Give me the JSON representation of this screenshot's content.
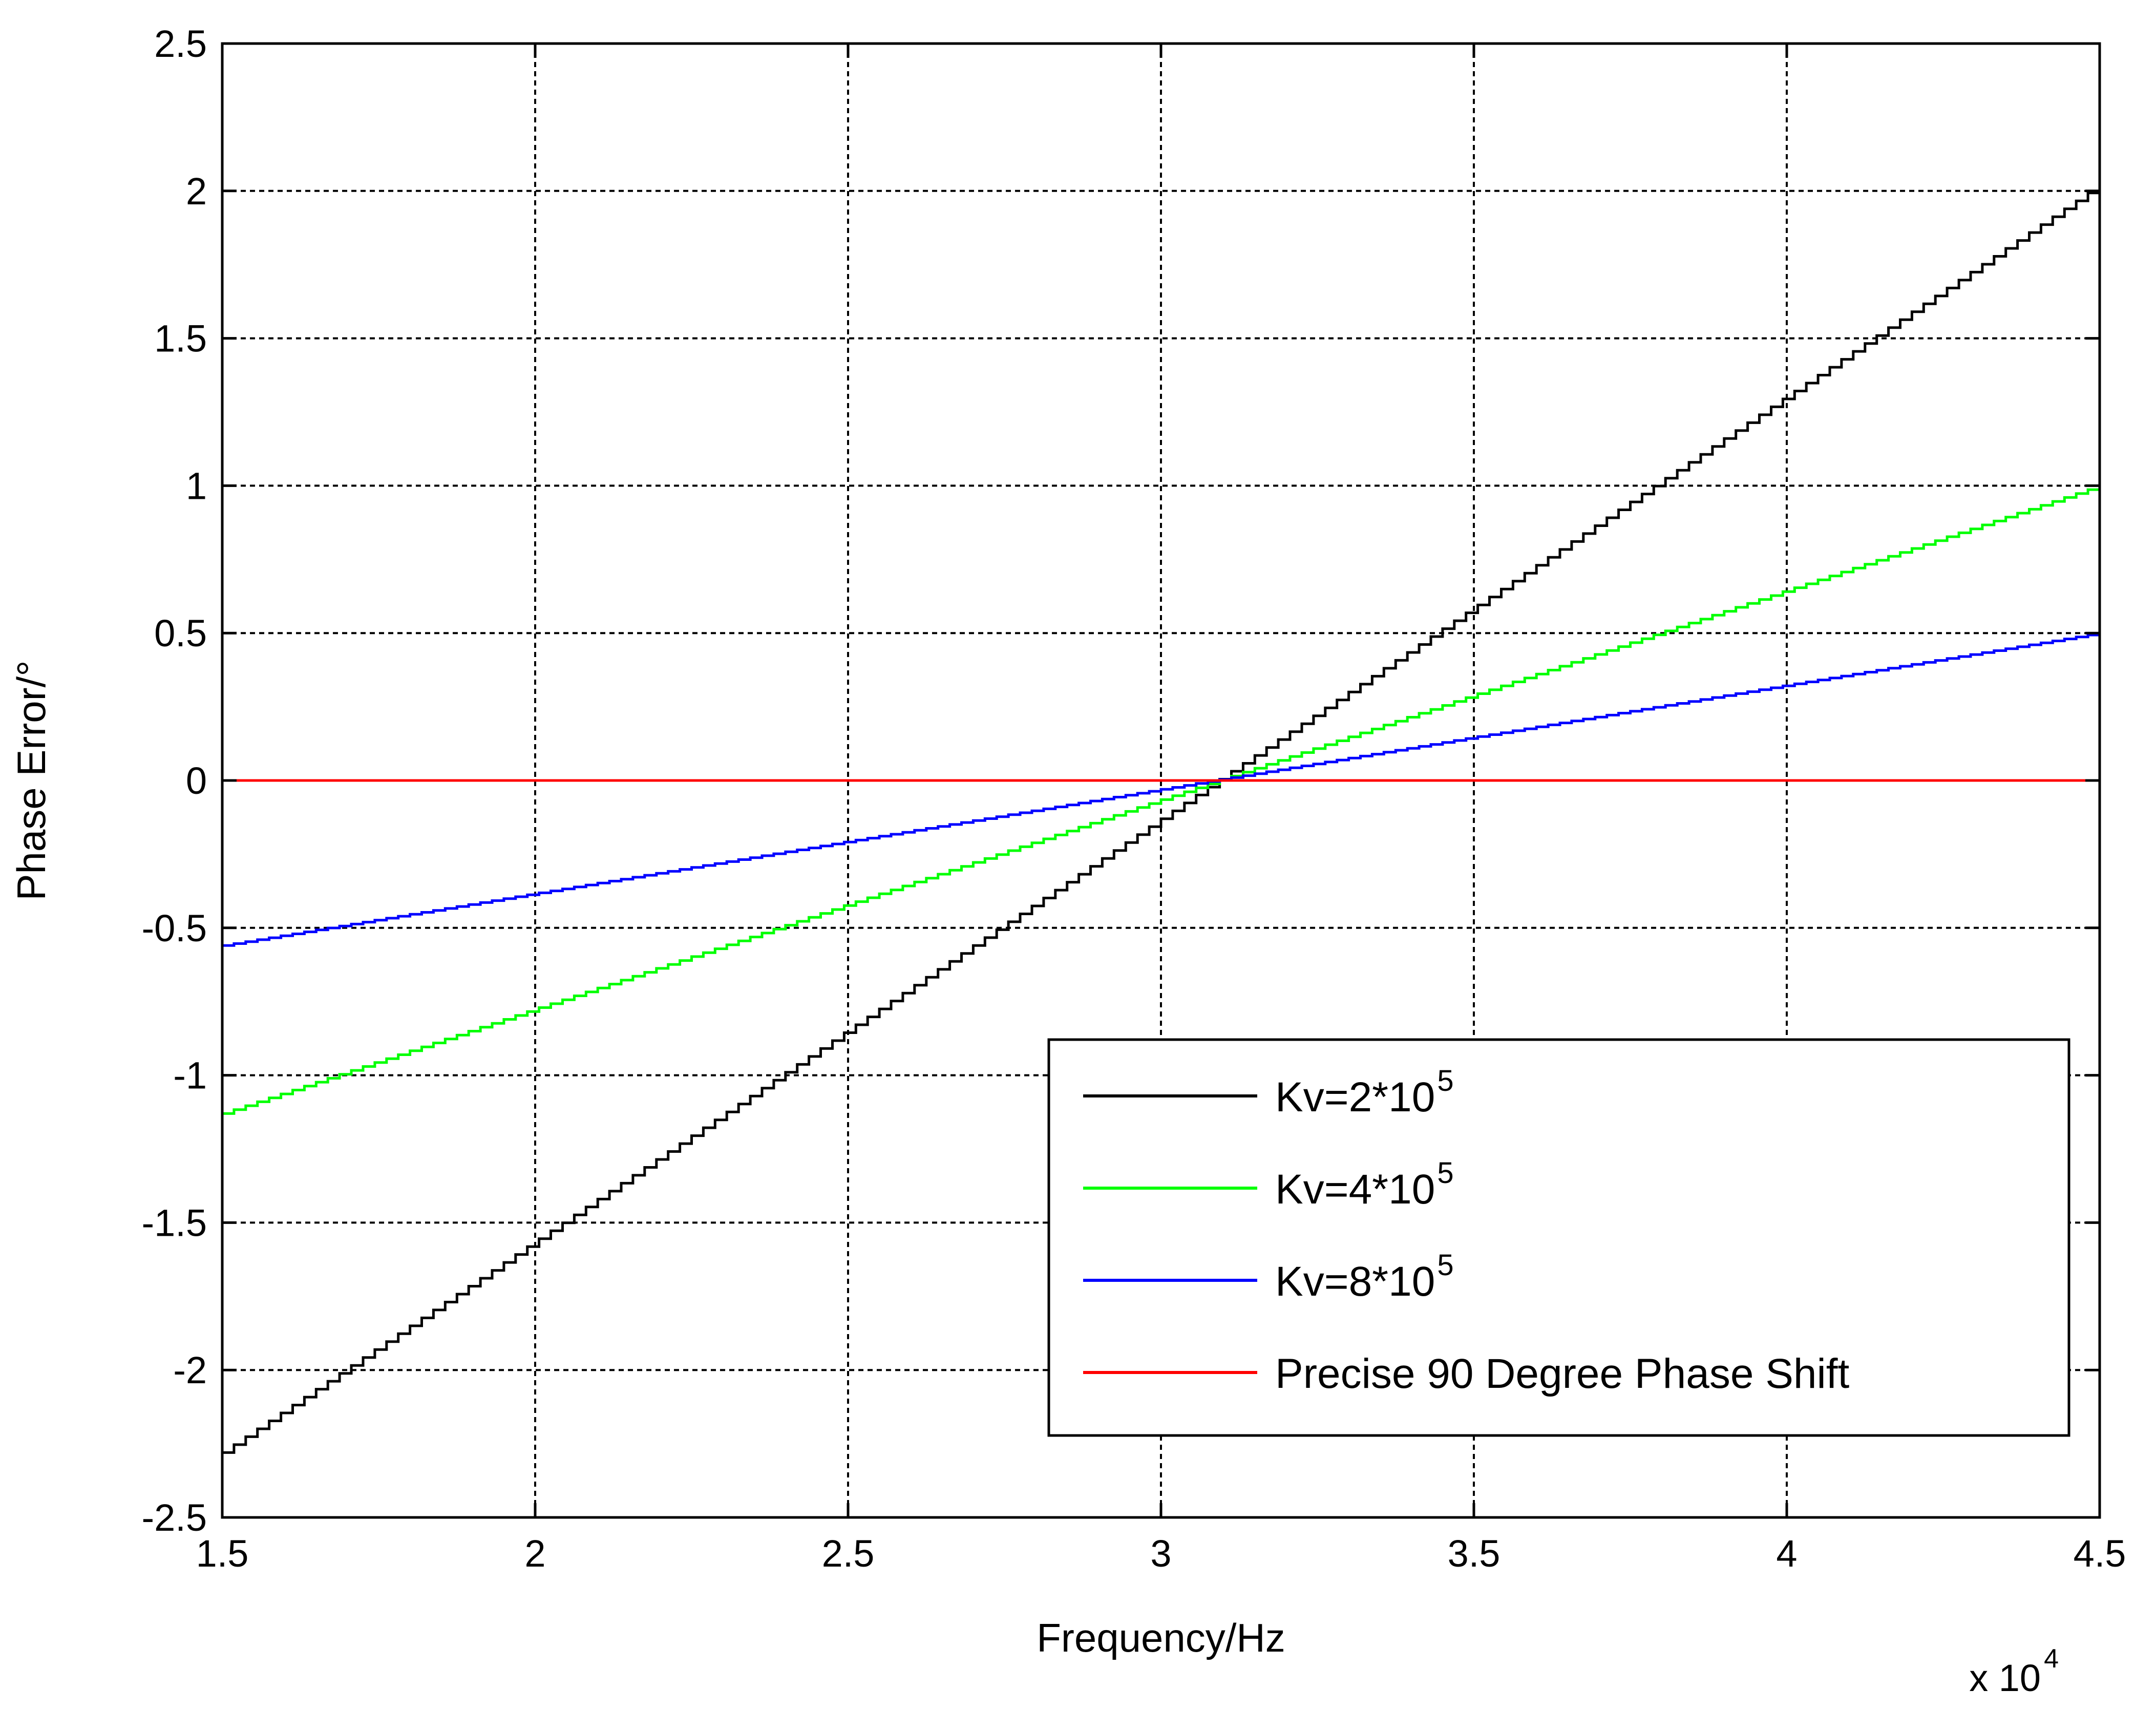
{
  "chart_data": {
    "type": "line",
    "xlabel": "Frequency/Hz",
    "ylabel": "Phase Error/°",
    "x_scale_note_base": "x 10",
    "x_scale_note_exp": "4",
    "xlim": [
      1.5,
      4.5
    ],
    "ylim": [
      -2.5,
      2.5
    ],
    "xticks": [
      1.5,
      2,
      2.5,
      3,
      3.5,
      4,
      4.5
    ],
    "xtick_labels": [
      "1.5",
      "2",
      "2.5",
      "3",
      "3.5",
      "4",
      "4.5"
    ],
    "yticks": [
      -2.5,
      -2,
      -1.5,
      -1,
      -0.5,
      0,
      0.5,
      1,
      1.5,
      2,
      2.5
    ],
    "ytick_labels": [
      "-2.5",
      "-2",
      "-1.5",
      "-1",
      "-0.5",
      "0",
      "0.5",
      "1",
      "1.5",
      "2",
      "2.5"
    ],
    "grid": true,
    "legend_position": "bottom-right",
    "series": [
      {
        "name_base": "Kv=2*10",
        "name_exp": "5",
        "color": "#000000",
        "x": [
          1.5,
          4.5
        ],
        "y": [
          -2.28,
          2.02
        ]
      },
      {
        "name_base": "Kv=4*10",
        "name_exp": "5",
        "color": "#00ff00",
        "x": [
          1.5,
          4.5
        ],
        "y": [
          -1.13,
          1.0
        ]
      },
      {
        "name_base": "Kv=8*10",
        "name_exp": "5",
        "color": "#0000ff",
        "x": [
          1.5,
          4.5
        ],
        "y": [
          -0.56,
          0.5
        ]
      },
      {
        "name_base": "Precise 90 Degree Phase Shift",
        "name_exp": "",
        "color": "#ff0000",
        "x": [
          1.5,
          4.5
        ],
        "y": [
          0,
          0
        ]
      }
    ]
  }
}
